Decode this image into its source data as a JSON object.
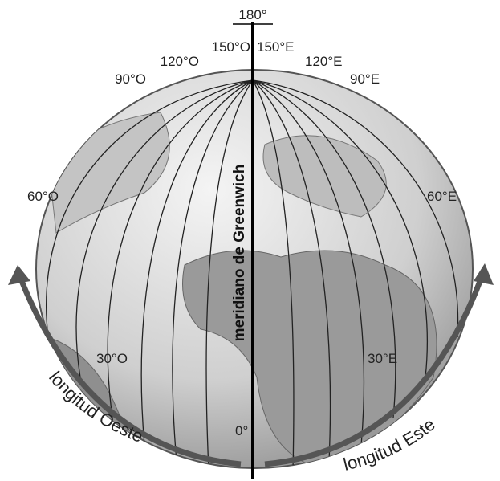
{
  "labels": {
    "top": "180°",
    "degrees": [
      "150°O",
      "150°E",
      "120°O",
      "120°E",
      "90°O",
      "90°E",
      "60°O",
      "60°E",
      "30°O",
      "30°E",
      "0°"
    ],
    "greenwich": "meridiano de Greenwich",
    "west": "longitud Oeste",
    "east": "longitud Este"
  }
}
